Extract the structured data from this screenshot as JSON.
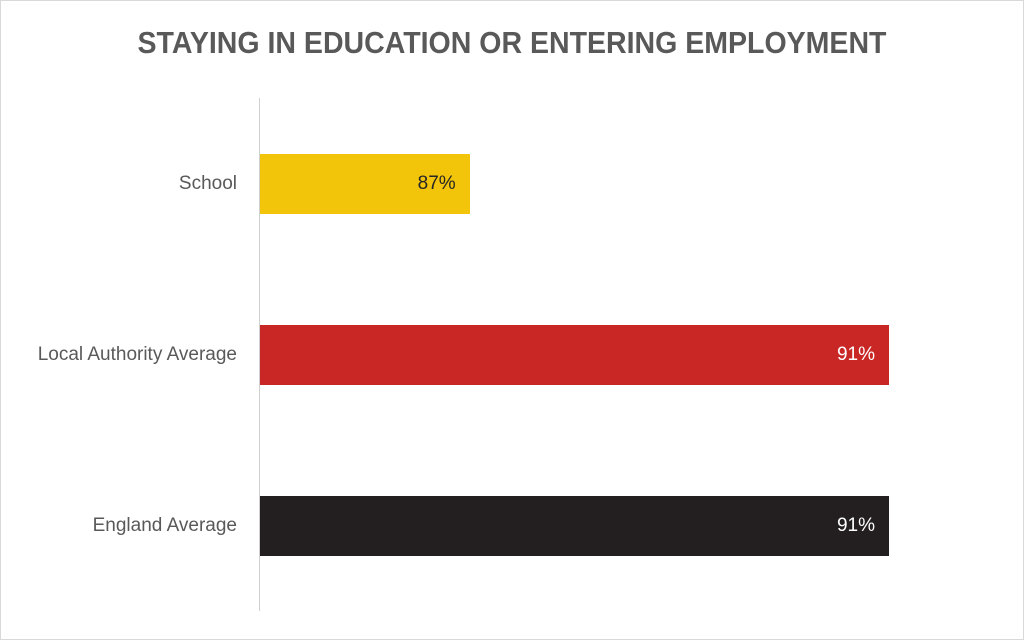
{
  "chart_data": {
    "type": "bar",
    "orientation": "horizontal",
    "title": "STAYING IN EDUCATION OR ENTERING EMPLOYMENT",
    "categories": [
      "School",
      "Local Authority Average",
      "England Average"
    ],
    "values": [
      87,
      91,
      91
    ],
    "data_labels": [
      "87%",
      "91%",
      "91%"
    ],
    "colors": [
      "#f2c40a",
      "#c92626",
      "#231f20"
    ],
    "label_colors": [
      "#262626",
      "#ffffff",
      "#ffffff"
    ],
    "xlim": [
      85,
      92
    ],
    "xlabel": "",
    "ylabel": "",
    "grid": false,
    "legend": "none"
  }
}
